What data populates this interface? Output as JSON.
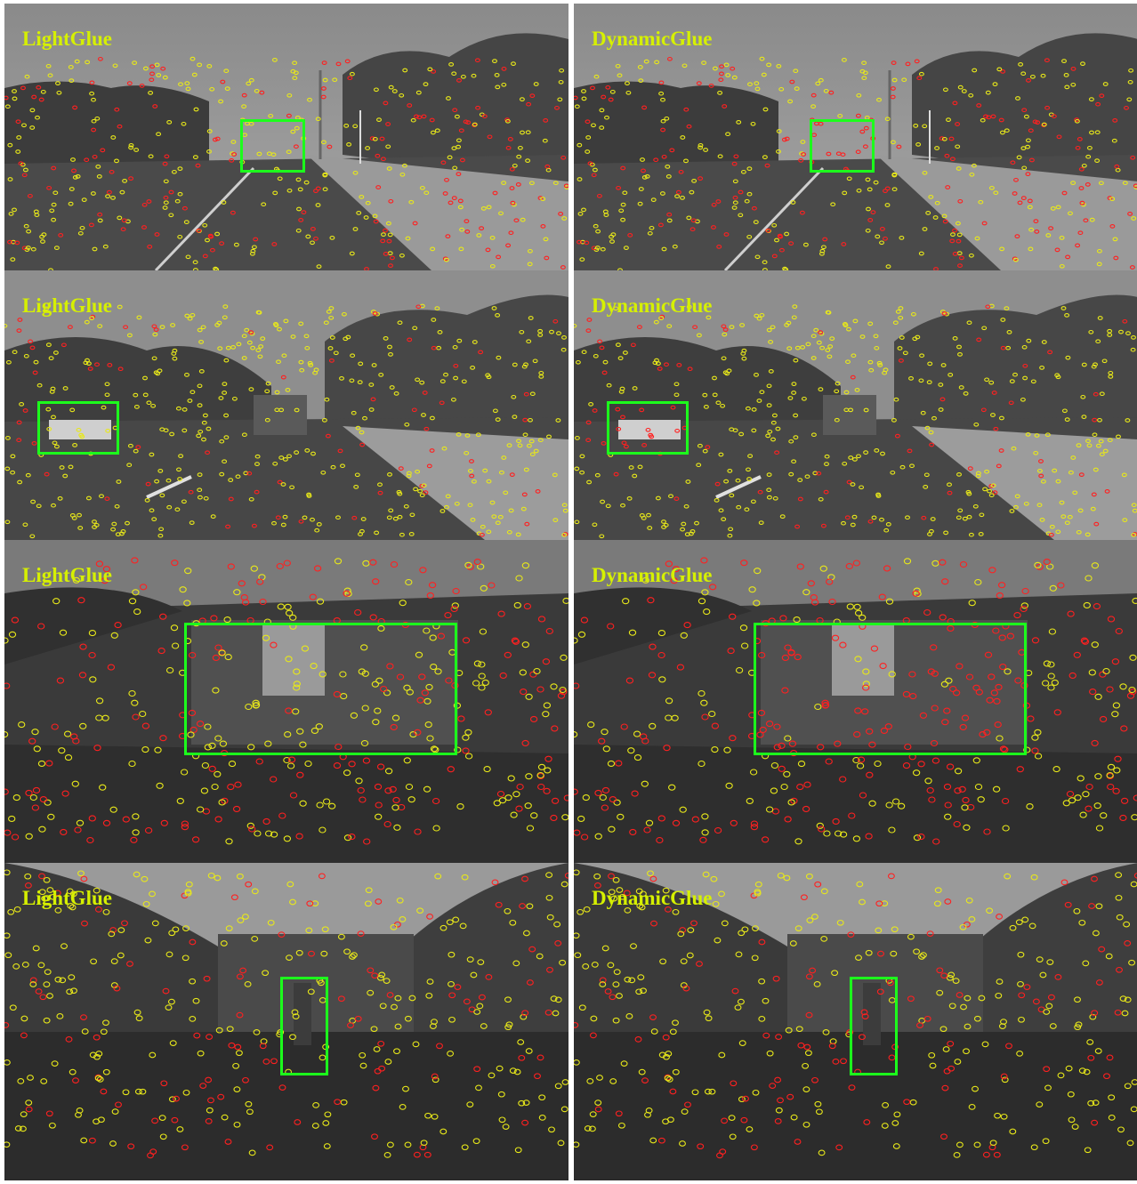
{
  "figure": {
    "methods": [
      "LightGlue",
      "DynamicGlue"
    ],
    "rows": [
      {
        "scene": "street-road-distant-car",
        "left_label": "LightGlue",
        "right_label": "DynamicGlue"
      },
      {
        "scene": "street-road-bus-and-car",
        "left_label": "LightGlue",
        "right_label": "DynamicGlue"
      },
      {
        "scene": "driveway-parked-vehicle",
        "left_label": "LightGlue",
        "right_label": "DynamicGlue"
      },
      {
        "scene": "road-pedestrian",
        "left_label": "LightGlue",
        "right_label": "DynamicGlue"
      }
    ]
  },
  "colors": {
    "label_text": "#d6f000",
    "highlight_box": "#1cff1c",
    "keypoint_static": "#e8e81a",
    "keypoint_dynamic": "#ff2020",
    "divider": "#ffffff"
  }
}
